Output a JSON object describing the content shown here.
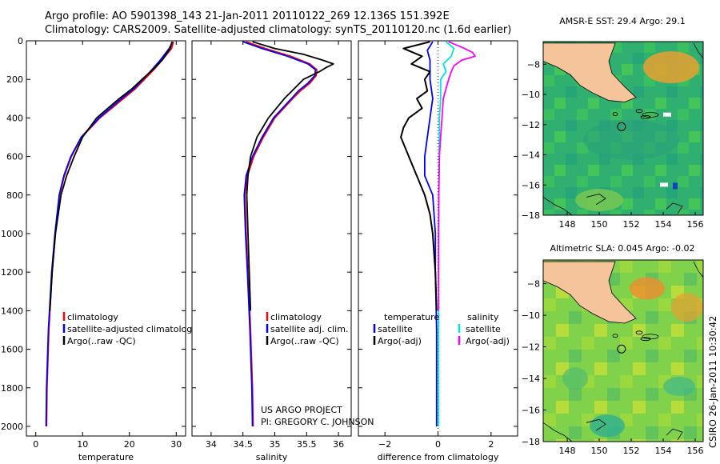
{
  "header": {
    "line1": "Argo profile: AO 5901398_143 21-Jan-2011 20110122_269 12.136S 151.392E",
    "line2": "Climatology: CARS2009. Satellite-adjusted climatology: synTS_20110120.nc (1.6d earlier)"
  },
  "footer": {
    "project": "US ARGO PROJECT",
    "pi": "PI: GREGORY C. JOHNSON",
    "credit": "CSIRO 26-Jan-2011 10:30:42"
  },
  "colors": {
    "climatology": "#ff0000",
    "satellite": "#0000ff",
    "argo": "#000000",
    "sat_salinity": "#00e5e5",
    "argo_adj_salinity": "#ff00ff"
  },
  "chart_data": [
    {
      "type": "line",
      "xlabel": "temperature",
      "ylabel": "",
      "xlim": [
        -2,
        32
      ],
      "ylim": [
        2050,
        0
      ],
      "xticks": [
        0,
        10,
        20,
        30
      ],
      "yticks": [
        0,
        200,
        400,
        600,
        800,
        1000,
        1200,
        1400,
        1600,
        1800,
        2000
      ],
      "legend": [
        "climatology",
        "satellite-adjusted climatology",
        "Argo(..raw -QC)"
      ],
      "series": [
        {
          "name": "climatology",
          "color": "#ff0000",
          "y": [
            5,
            40,
            100,
            150,
            200,
            250,
            300,
            400,
            500,
            600,
            700,
            800,
            1000,
            1200,
            1500,
            1800,
            2000
          ],
          "x": [
            29.4,
            29.0,
            27.0,
            25.2,
            23.2,
            21.2,
            18.7,
            13.7,
            9.8,
            7.6,
            6.1,
            5.1,
            4.2,
            3.5,
            2.8,
            2.4,
            2.3
          ]
        },
        {
          "name": "satellite-adjusted climatology",
          "color": "#0000ff",
          "y": [
            5,
            40,
            100,
            150,
            200,
            250,
            300,
            400,
            500,
            600,
            700,
            800,
            1000,
            1200,
            1500,
            1800,
            2000
          ],
          "x": [
            29.2,
            28.5,
            26.6,
            24.8,
            22.9,
            20.9,
            18.3,
            13.5,
            9.7,
            7.5,
            6.0,
            5.0,
            4.1,
            3.4,
            2.7,
            2.3,
            2.2
          ]
        },
        {
          "name": "Argo(..raw -QC)",
          "color": "#000000",
          "y": [
            5,
            40,
            100,
            150,
            200,
            250,
            300,
            400,
            500,
            600,
            700,
            800,
            1000,
            1200,
            1400
          ],
          "x": [
            29.1,
            28.7,
            27.0,
            25.0,
            22.7,
            20.5,
            17.8,
            13.0,
            10.0,
            8.2,
            6.6,
            5.4,
            4.2,
            3.5,
            3.0
          ]
        }
      ]
    },
    {
      "type": "line",
      "xlabel": "salinity",
      "ylabel": "",
      "xlim": [
        33.7,
        36.2
      ],
      "ylim": [
        2050,
        0
      ],
      "xticks": [
        34,
        34.5,
        35,
        35.5,
        36
      ],
      "xticklabels": [
        "34",
        "34.5",
        "35",
        "35.5",
        "36"
      ],
      "legend": [
        "climatology",
        "satellite adj. clim.",
        "Argo(..raw -QC)"
      ],
      "series": [
        {
          "name": "climatology",
          "color": "#ff0000",
          "y": [
            5,
            40,
            80,
            120,
            150,
            180,
            220,
            260,
            300,
            400,
            500,
            600,
            700,
            800,
            1000,
            1200,
            1500,
            1800,
            2000
          ],
          "x": [
            34.55,
            34.85,
            35.25,
            35.55,
            35.66,
            35.65,
            35.55,
            35.4,
            35.28,
            35.0,
            34.82,
            34.67,
            34.57,
            34.53,
            34.55,
            34.58,
            34.62,
            34.65,
            34.66
          ]
        },
        {
          "name": "satellite adj. clim.",
          "color": "#0000ff",
          "y": [
            5,
            40,
            80,
            120,
            150,
            180,
            220,
            260,
            300,
            400,
            500,
            600,
            700,
            800,
            1000,
            1200,
            1500,
            1800,
            2000
          ],
          "x": [
            34.5,
            34.8,
            35.2,
            35.52,
            35.64,
            35.63,
            35.52,
            35.37,
            35.26,
            34.98,
            34.8,
            34.65,
            34.55,
            34.52,
            34.54,
            34.57,
            34.61,
            34.64,
            34.65
          ]
        },
        {
          "name": "Argo(..raw -QC)",
          "color": "#000000",
          "y": [
            5,
            40,
            70,
            100,
            120,
            140,
            160,
            200,
            250,
            300,
            400,
            500,
            600,
            700,
            800,
            1000,
            1200,
            1400
          ],
          "x": [
            34.65,
            35.0,
            35.45,
            35.75,
            35.92,
            35.8,
            35.7,
            35.45,
            35.3,
            35.15,
            34.9,
            34.72,
            34.62,
            34.58,
            34.56,
            34.58,
            34.6,
            34.62
          ]
        }
      ]
    },
    {
      "type": "line",
      "xlabel": "difference from climatology",
      "ylabel": "",
      "xlim": [
        -3,
        3
      ],
      "ylim": [
        2050,
        0
      ],
      "xticks": [
        -2,
        0,
        2
      ],
      "legend": [
        "temperature",
        "satellite",
        "Argo(-adj)",
        "salinity",
        "satellite",
        "Argo(-adj)"
      ],
      "series": [
        {
          "name": "satellite",
          "group": "temperature",
          "color": "#0000ff",
          "y": [
            5,
            50,
            100,
            200,
            300,
            400,
            500,
            600,
            700,
            800,
            1000,
            1200,
            1500,
            1800,
            2000
          ],
          "x": [
            -0.2,
            -0.4,
            -0.3,
            -0.3,
            -0.2,
            -0.3,
            -0.4,
            -0.5,
            -0.5,
            -0.2,
            -0.1,
            -0.1,
            -0.05,
            -0.05,
            -0.05
          ]
        },
        {
          "name": "Argo(-adj)",
          "group": "temperature",
          "color": "#000000",
          "y": [
            5,
            40,
            80,
            120,
            160,
            200,
            260,
            300,
            350,
            400,
            450,
            500,
            600,
            700,
            800,
            900,
            1000,
            1200,
            1400
          ],
          "x": [
            -0.3,
            -1.3,
            -0.6,
            -1.0,
            -0.3,
            -0.5,
            -0.4,
            -0.8,
            -0.6,
            -1.1,
            -1.3,
            -1.4,
            -1.1,
            -0.8,
            -0.5,
            -0.3,
            -0.2,
            -0.1,
            -0.05
          ]
        },
        {
          "name": "satellite",
          "group": "salinity",
          "color": "#00e5e5",
          "y": [
            5,
            40,
            80,
            120,
            160,
            200,
            300,
            400,
            500,
            600,
            800,
            1000,
            1500,
            2000
          ],
          "x": [
            0.3,
            0.6,
            0.5,
            0.2,
            0.3,
            0.1,
            0.1,
            0.05,
            0.05,
            0.05,
            0.03,
            0.03,
            0.02,
            0.02
          ]
        },
        {
          "name": "Argo(-adj)",
          "group": "salinity",
          "color": "#ff00ff",
          "y": [
            5,
            40,
            60,
            80,
            100,
            130,
            160,
            200,
            300,
            400,
            500,
            600,
            800,
            1000,
            1200,
            1400
          ],
          "x": [
            0.4,
            1.0,
            1.3,
            1.4,
            0.9,
            0.6,
            0.5,
            0.4,
            0.2,
            0.15,
            0.1,
            0.05,
            0.03,
            0.02,
            0.02,
            0.02
          ]
        }
      ]
    },
    {
      "type": "heatmap",
      "title": "AMSR-E SST: 29.4 Argo: 29.1",
      "xlim": [
        146.5,
        156.5
      ],
      "ylim": [
        -18,
        -6.5
      ],
      "xticks": [
        148,
        150,
        152,
        154,
        156
      ],
      "yticks": [
        -8,
        -10,
        -12,
        -14,
        -16,
        -18
      ],
      "argo_position": {
        "lon": 151.392,
        "lat": -12.136
      }
    },
    {
      "type": "heatmap",
      "title": "Altimetric SLA: 0.045 Argo: -0.02",
      "xlim": [
        146.5,
        156.5
      ],
      "ylim": [
        -18,
        -6.5
      ],
      "xticks": [
        148,
        150,
        152,
        154,
        156
      ],
      "yticks": [
        -8,
        -10,
        -12,
        -14,
        -16,
        -18
      ],
      "argo_position": {
        "lon": 151.392,
        "lat": -12.136
      }
    }
  ]
}
